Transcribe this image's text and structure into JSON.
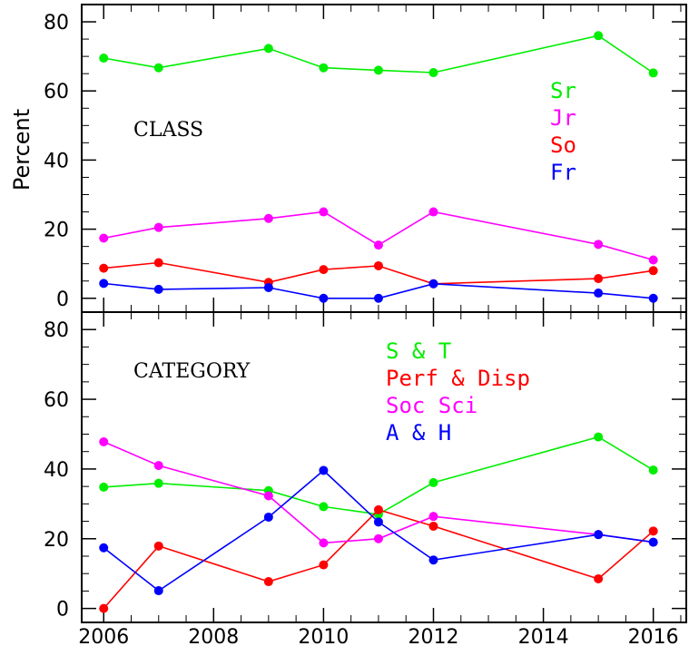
{
  "chart_data": [
    {
      "type": "line",
      "title": "CLASS",
      "ylabel": "Percent",
      "xlim": [
        2005.6,
        2016.6
      ],
      "ylim": [
        -4,
        85
      ],
      "yticks": [
        0,
        20,
        40,
        60,
        80
      ],
      "grid": false,
      "legend_position": "top-right",
      "series": [
        {
          "name": "Sr",
          "color": "#00ee00",
          "x": [
            2006,
            2007,
            2009,
            2010,
            2011,
            2012,
            2015,
            2016
          ],
          "values": [
            69.5,
            66.7,
            72.3,
            66.7,
            66.0,
            65.3,
            76.0,
            65.2
          ]
        },
        {
          "name": "Jr",
          "color": "#ff00ff",
          "x": [
            2006,
            2007,
            2009,
            2010,
            2011,
            2012,
            2015,
            2016
          ],
          "values": [
            17.4,
            20.5,
            23.1,
            25.0,
            15.4,
            25.0,
            15.6,
            11.1
          ]
        },
        {
          "name": "So",
          "color": "#ff0000",
          "x": [
            2006,
            2007,
            2009,
            2010,
            2011,
            2012,
            2015,
            2016
          ],
          "values": [
            8.7,
            10.3,
            4.6,
            8.3,
            9.4,
            4.2,
            5.7,
            8.0
          ]
        },
        {
          "name": "Fr",
          "color": "#0000ff",
          "x": [
            2006,
            2007,
            2009,
            2010,
            2011,
            2012,
            2015,
            2016
          ],
          "values": [
            4.3,
            2.6,
            3.1,
            0.0,
            0.0,
            4.2,
            1.5,
            0.0
          ]
        }
      ]
    },
    {
      "type": "line",
      "title": "CATEGORY",
      "ylabel": "",
      "xlim": [
        2005.6,
        2016.6
      ],
      "ylim": [
        -4,
        85
      ],
      "yticks": [
        0,
        20,
        40,
        60,
        80
      ],
      "xticks": [
        2006,
        2008,
        2010,
        2012,
        2014,
        2016
      ],
      "grid": false,
      "legend_position": "top-center",
      "series": [
        {
          "name": "S & T",
          "color": "#00ee00",
          "x": [
            2006,
            2007,
            2009,
            2010,
            2011,
            2012,
            2015,
            2016
          ],
          "values": [
            34.8,
            35.9,
            33.8,
            29.2,
            27.0,
            36.1,
            49.2,
            39.7
          ]
        },
        {
          "name": "Perf & Disp",
          "color": "#ff0000",
          "x": [
            2006,
            2007,
            2009,
            2010,
            2011,
            2012,
            2015,
            2016
          ],
          "values": [
            0.0,
            17.9,
            7.7,
            12.5,
            28.3,
            23.6,
            8.5,
            22.2
          ]
        },
        {
          "name": "Soc Sci",
          "color": "#ff00ff",
          "x": [
            2006,
            2007,
            2009,
            2010,
            2011,
            2012,
            2015,
            2016
          ],
          "values": [
            47.8,
            41.0,
            32.3,
            18.8,
            20.0,
            26.4,
            21.2,
            19.0
          ]
        },
        {
          "name": "A & H",
          "color": "#0000ff",
          "x": [
            2006,
            2007,
            2009,
            2010,
            2011,
            2012,
            2015,
            2016
          ],
          "values": [
            17.4,
            5.1,
            26.2,
            39.6,
            24.8,
            13.9,
            21.2,
            19.0
          ]
        }
      ]
    }
  ]
}
